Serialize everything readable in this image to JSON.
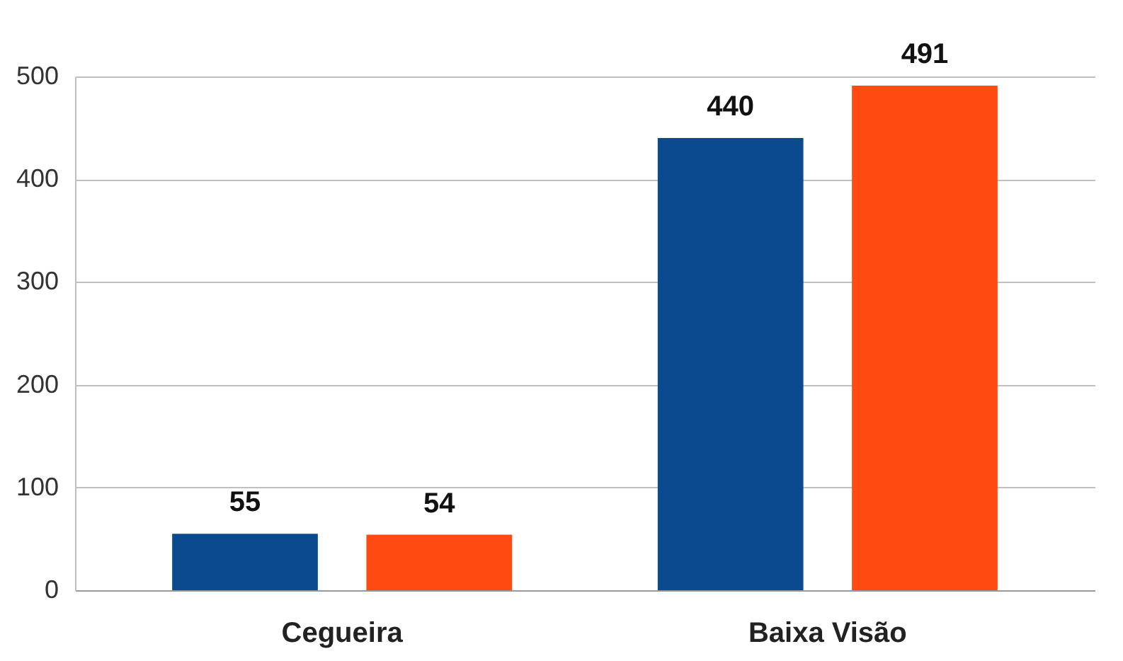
{
  "chart_data": {
    "type": "bar",
    "categories": [
      "Cegueira",
      "Baixa Visão"
    ],
    "series": [
      {
        "color": "#0b4a8e",
        "values": [
          55,
          440
        ]
      },
      {
        "color": "#ff4a12",
        "values": [
          54,
          491
        ]
      }
    ],
    "ylim": [
      0,
      500
    ],
    "yticks": [
      0,
      100,
      200,
      300,
      400,
      500
    ],
    "grid": "y",
    "data_labels": true
  }
}
